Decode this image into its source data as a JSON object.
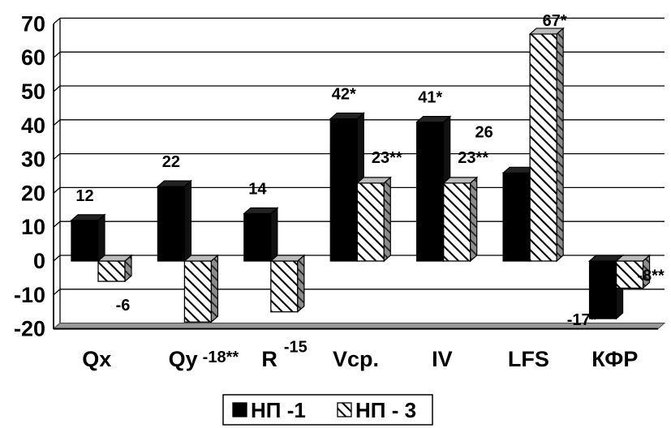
{
  "chart_data": {
    "type": "bar",
    "categories": [
      "Qx",
      "Qy",
      "R",
      "Vcp.",
      "IV",
      "LFS",
      "КФР"
    ],
    "series": [
      {
        "name": "НП -1",
        "values": [
          12,
          22,
          14,
          42,
          41,
          26,
          -17
        ],
        "labels": [
          "12",
          "22",
          "14",
          "42*",
          "41*",
          "26",
          "-17*"
        ],
        "color": "#000000",
        "pattern": "solid"
      },
      {
        "name": "НП - 3",
        "values": [
          -6,
          -18,
          -15,
          23,
          23,
          67,
          -8
        ],
        "labels": [
          "-6",
          "-18**",
          "-15",
          "23**",
          "23**",
          "67*",
          "-8**"
        ],
        "color": "#000000",
        "pattern": "diagonal-hatch"
      }
    ],
    "yticks": [
      "70",
      "60",
      "50",
      "40",
      "30",
      "20",
      "10",
      "0",
      "-10",
      "-20"
    ],
    "ylim": [
      -20,
      70
    ],
    "grid": true,
    "legend": "bottom-center",
    "three_d": true
  }
}
